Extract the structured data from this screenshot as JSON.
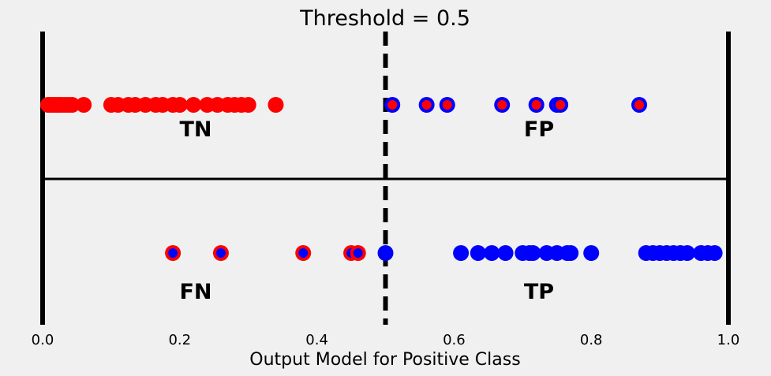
{
  "chart_data": {
    "type": "scatter",
    "title": "Threshold = 0.5",
    "xlabel": "Output Model for Positive Class",
    "ylabel": "",
    "xlim": [
      0.0,
      1.0
    ],
    "x_ticks": [
      "0.0",
      "0.2",
      "0.4",
      "0.6",
      "0.8",
      "1.0"
    ],
    "x_tick_values": [
      0.0,
      0.2,
      0.4,
      0.6,
      0.8,
      1.0
    ],
    "grid": false,
    "threshold": 0.5,
    "quadrant_labels": {
      "tn": "TN",
      "fp": "FP",
      "fn": "FN",
      "tp": "TP"
    },
    "colors": {
      "background": "#f0f0f0",
      "negative": "#ff0000",
      "positive": "#0000ff",
      "axis": "#000000"
    },
    "series": [
      {
        "row": "negative",
        "values": [
          0.008,
          0.012,
          0.016,
          0.02,
          0.024,
          0.028,
          0.033,
          0.038,
          0.043,
          0.06,
          0.1,
          0.11,
          0.125,
          0.135,
          0.15,
          0.165,
          0.175,
          0.19,
          0.2,
          0.22,
          0.24,
          0.255,
          0.27,
          0.28,
          0.29,
          0.3,
          0.34,
          0.51,
          0.56,
          0.59,
          0.67,
          0.72,
          0.75,
          0.755,
          0.87
        ]
      },
      {
        "row": "positive",
        "values": [
          0.19,
          0.26,
          0.38,
          0.45,
          0.46,
          0.5,
          0.61,
          0.635,
          0.655,
          0.675,
          0.7,
          0.71,
          0.715,
          0.735,
          0.75,
          0.765,
          0.77,
          0.8,
          0.88,
          0.89,
          0.9,
          0.91,
          0.92,
          0.93,
          0.94,
          0.96,
          0.97,
          0.98
        ]
      }
    ]
  }
}
